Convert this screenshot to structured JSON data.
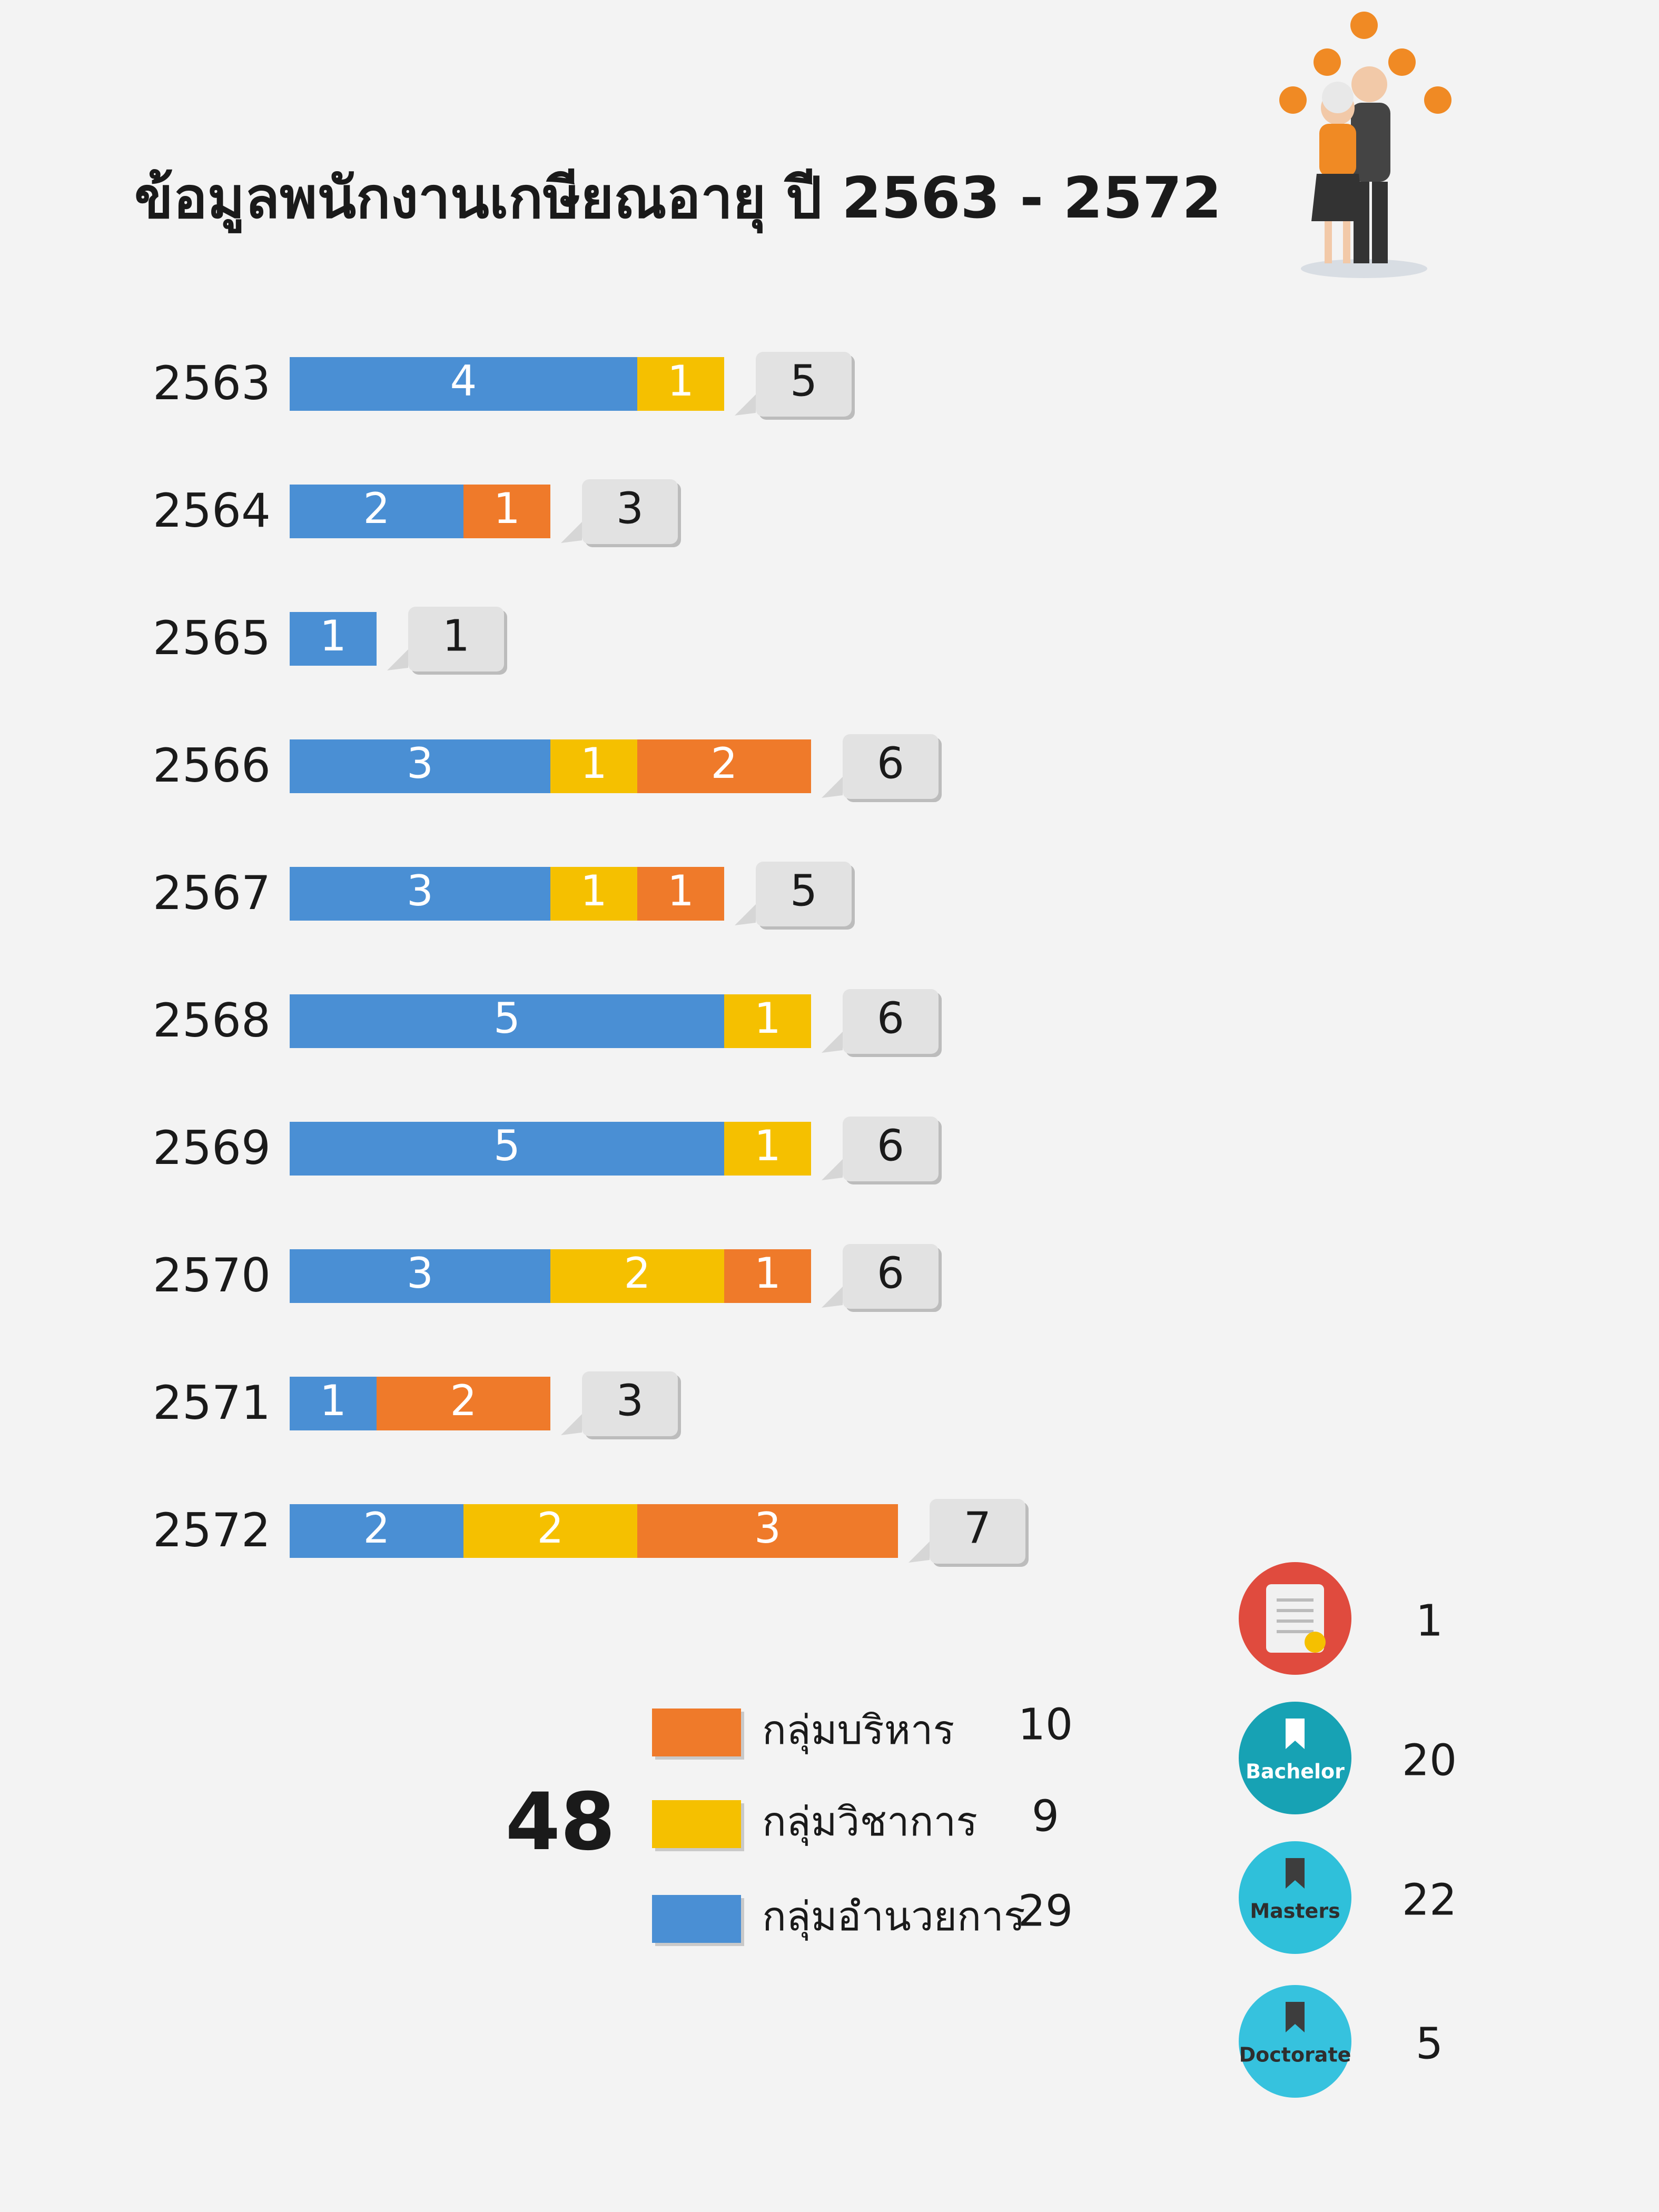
{
  "chart_data": {
    "type": "bar",
    "orientation": "horizontal",
    "stacked": true,
    "title": "ข้อมูลพนักงานเกษียณอายุ ปี 2563 - 2572",
    "categories": [
      "2563",
      "2564",
      "2565",
      "2566",
      "2567",
      "2568",
      "2569",
      "2570",
      "2571",
      "2572"
    ],
    "series": [
      {
        "name": "กลุ่มอำนวยการ",
        "color": "#4a8fd4",
        "total": 29,
        "values": [
          4,
          2,
          1,
          3,
          3,
          5,
          5,
          3,
          1,
          2
        ]
      },
      {
        "name": "กลุ่มวิชาการ",
        "color": "#f5c000",
        "total": 9,
        "values": [
          1,
          null,
          null,
          1,
          1,
          1,
          1,
          2,
          null,
          2
        ]
      },
      {
        "name": "กลุ่มบริหาร",
        "color": "#ef7a2a",
        "total": 10,
        "values": [
          null,
          1,
          null,
          2,
          1,
          null,
          null,
          1,
          2,
          3
        ]
      }
    ],
    "totals": [
      5,
      3,
      1,
      6,
      5,
      6,
      6,
      6,
      3,
      7
    ],
    "grand_total": 48
  },
  "education": [
    {
      "color": "#e04b3e",
      "count": 1
    },
    {
      "label": "Bachelor",
      "color": "#17a2b4",
      "count": 20
    },
    {
      "label": "Masters",
      "color": "#2fc0da",
      "count": 22
    },
    {
      "label": "Doctorate",
      "color": "#36c2de",
      "count": 5
    }
  ]
}
